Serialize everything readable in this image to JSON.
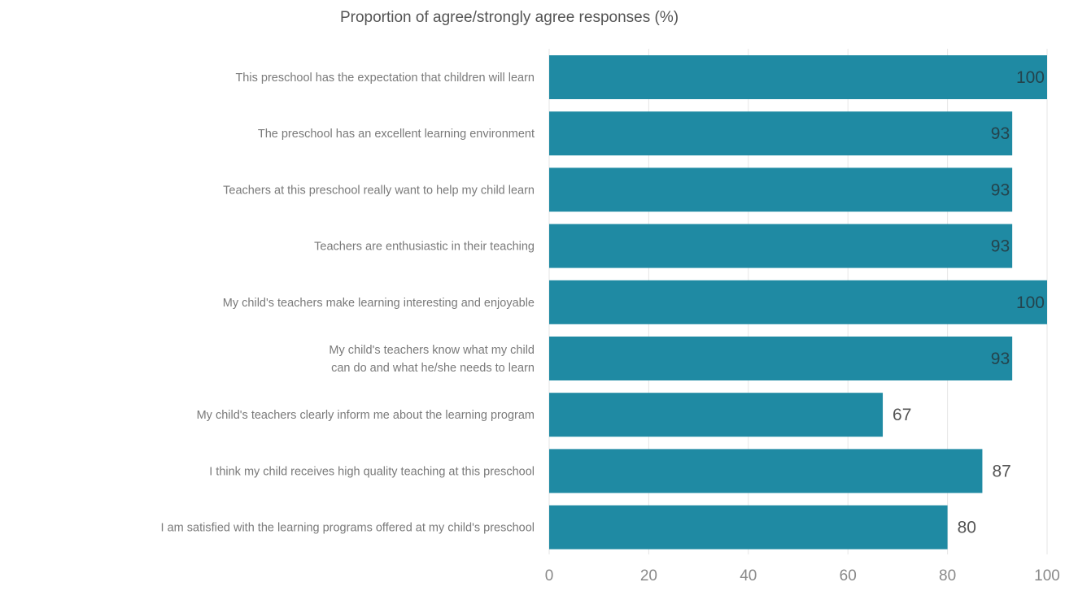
{
  "chart_data": {
    "type": "bar",
    "orientation": "horizontal",
    "title": "Proportion of agree/strongly agree responses (%)",
    "xlabel": "",
    "ylabel": "",
    "xlim": [
      0,
      100
    ],
    "x_ticks": [
      "0",
      "20",
      "40",
      "60",
      "80",
      "100"
    ],
    "grid": "vertical",
    "bar_color": "#1f8aa3",
    "categories": [
      [
        "This preschool has the expectation that children will learn"
      ],
      [
        "The preschool has an excellent learning environment"
      ],
      [
        "Teachers at this preschool really want to help my child learn"
      ],
      [
        "Teachers are enthusiastic in their teaching"
      ],
      [
        "My child's teachers make learning interesting and enjoyable"
      ],
      [
        "My child's teachers know what my child",
        "can do and what he/she needs to learn"
      ],
      [
        "My child's teachers clearly inform me about the learning program"
      ],
      [
        "I think my child receives high quality teaching at this preschool"
      ],
      [
        "I am satisfied with the learning programs offered at my child's preschool"
      ]
    ],
    "values": [
      100,
      93,
      93,
      93,
      100,
      93,
      67,
      87,
      80
    ],
    "value_labels": [
      "100",
      "93",
      "93",
      "93",
      "100",
      "93",
      "67",
      "87",
      "80"
    ]
  }
}
